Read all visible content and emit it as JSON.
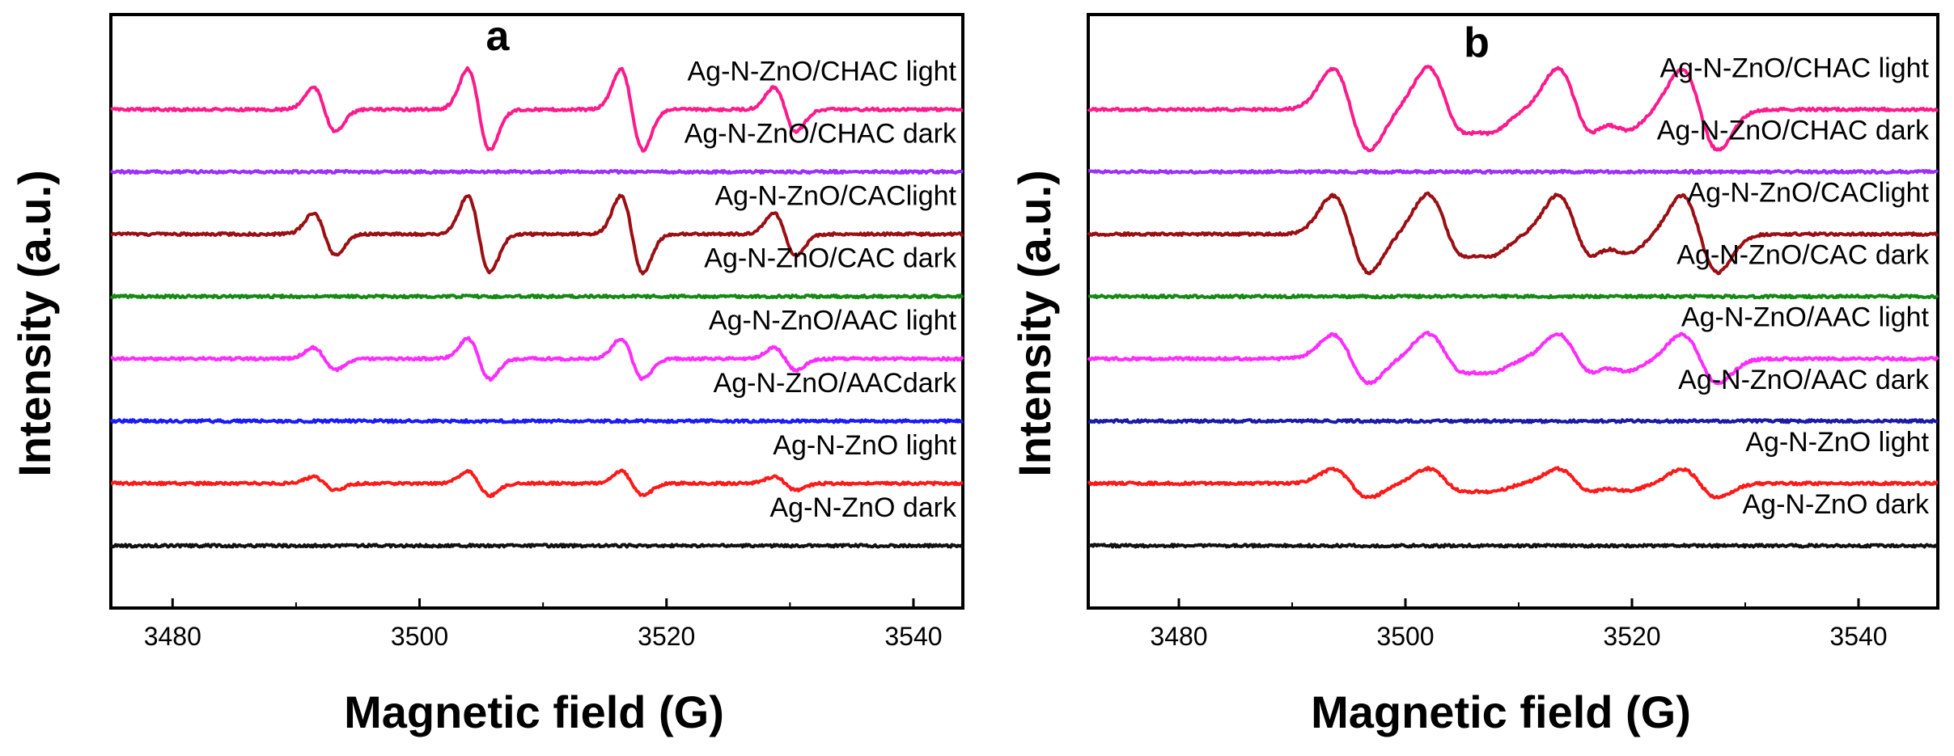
{
  "figure": {
    "shared_ylabel": "Intensity (a.u.)",
    "shared_xlabel": "Magnetic field (G)"
  },
  "chart_data": [
    {
      "type": "line",
      "panel": "a",
      "title": "",
      "xlabel": "Magnetic field (G)",
      "ylabel": "Intensity (a.u.)",
      "xlim": [
        3475,
        3544
      ],
      "xticks": [
        3480,
        3500,
        3520,
        3540
      ],
      "yticks": [],
      "grid": false,
      "spectrum": {
        "centers": [
          3492.3,
          3504.8,
          3517.2,
          3529.6
        ],
        "weights": [
          0.55,
          1.0,
          1.0,
          0.55
        ],
        "halfwidth": 0.9
      },
      "series": [
        {
          "name": "Ag-N-ZnO/CHAC light",
          "color": "#ff1a8c",
          "baseline": 8.4,
          "amplitude": 1.0
        },
        {
          "name": "Ag-N-ZnO/CHAC dark",
          "color": "#9b30ff",
          "baseline": 7.35,
          "amplitude": 0.0
        },
        {
          "name": "Ag-N-ZnO/CAClight",
          "color": "#9b0f14",
          "baseline": 6.3,
          "amplitude": 0.95
        },
        {
          "name": "Ag-N-ZnO/CAC dark",
          "color": "#138a13",
          "baseline": 5.25,
          "amplitude": 0.0
        },
        {
          "name": "Ag-N-ZnO/AAC light",
          "color": "#ff2bff",
          "baseline": 4.2,
          "amplitude": 0.5
        },
        {
          "name": "Ag-N-ZnO/AACdark",
          "color": "#1a1aff",
          "baseline": 3.15,
          "amplitude": 0.0
        },
        {
          "name": "Ag-N-ZnO light",
          "color": "#ff1a1a",
          "baseline": 2.1,
          "amplitude": 0.3
        },
        {
          "name": "Ag-N-ZnO dark",
          "color": "#111111",
          "baseline": 1.05,
          "amplitude": 0.0
        }
      ]
    },
    {
      "type": "line",
      "panel": "b",
      "title": "",
      "xlabel": "Magnetic field (G)",
      "ylabel": "Intensity (a.u.)",
      "xlim": [
        3472,
        3547
      ],
      "xticks": [
        3480,
        3500,
        3520,
        3540
      ],
      "yticks": [],
      "grid": false,
      "spectrum": {
        "centers": [
          3495.2,
          3503.5,
          3506.4,
          3515.0,
          3518.3,
          3526.0
        ],
        "weights": [
          1.0,
          1.0,
          0.45,
          1.0,
          0.45,
          1.0
        ],
        "halfwidth": 1.6
      },
      "series": [
        {
          "name": "Ag-N-ZnO/CHAC light",
          "color": "#ff1a8c",
          "baseline": 8.4,
          "amplitude": 1.0
        },
        {
          "name": "Ag-N-ZnO/CHAC dark",
          "color": "#9b30ff",
          "baseline": 7.35,
          "amplitude": 0.0
        },
        {
          "name": "Ag-N-ZnO/CAClight",
          "color": "#9b0f14",
          "baseline": 6.3,
          "amplitude": 0.95
        },
        {
          "name": "Ag-N-ZnO/CAC dark",
          "color": "#138a13",
          "baseline": 5.25,
          "amplitude": 0.0
        },
        {
          "name": "Ag-N-ZnO/AAC light",
          "color": "#ff2bff",
          "baseline": 4.2,
          "amplitude": 0.6
        },
        {
          "name": "Ag-N-ZnO/AAC dark",
          "color": "#1a1aa8",
          "baseline": 3.15,
          "amplitude": 0.0
        },
        {
          "name": "Ag-N-ZnO light",
          "color": "#ff1a1a",
          "baseline": 2.1,
          "amplitude": 0.35
        },
        {
          "name": "Ag-N-ZnO dark",
          "color": "#111111",
          "baseline": 1.05,
          "amplitude": 0.0
        }
      ]
    }
  ]
}
